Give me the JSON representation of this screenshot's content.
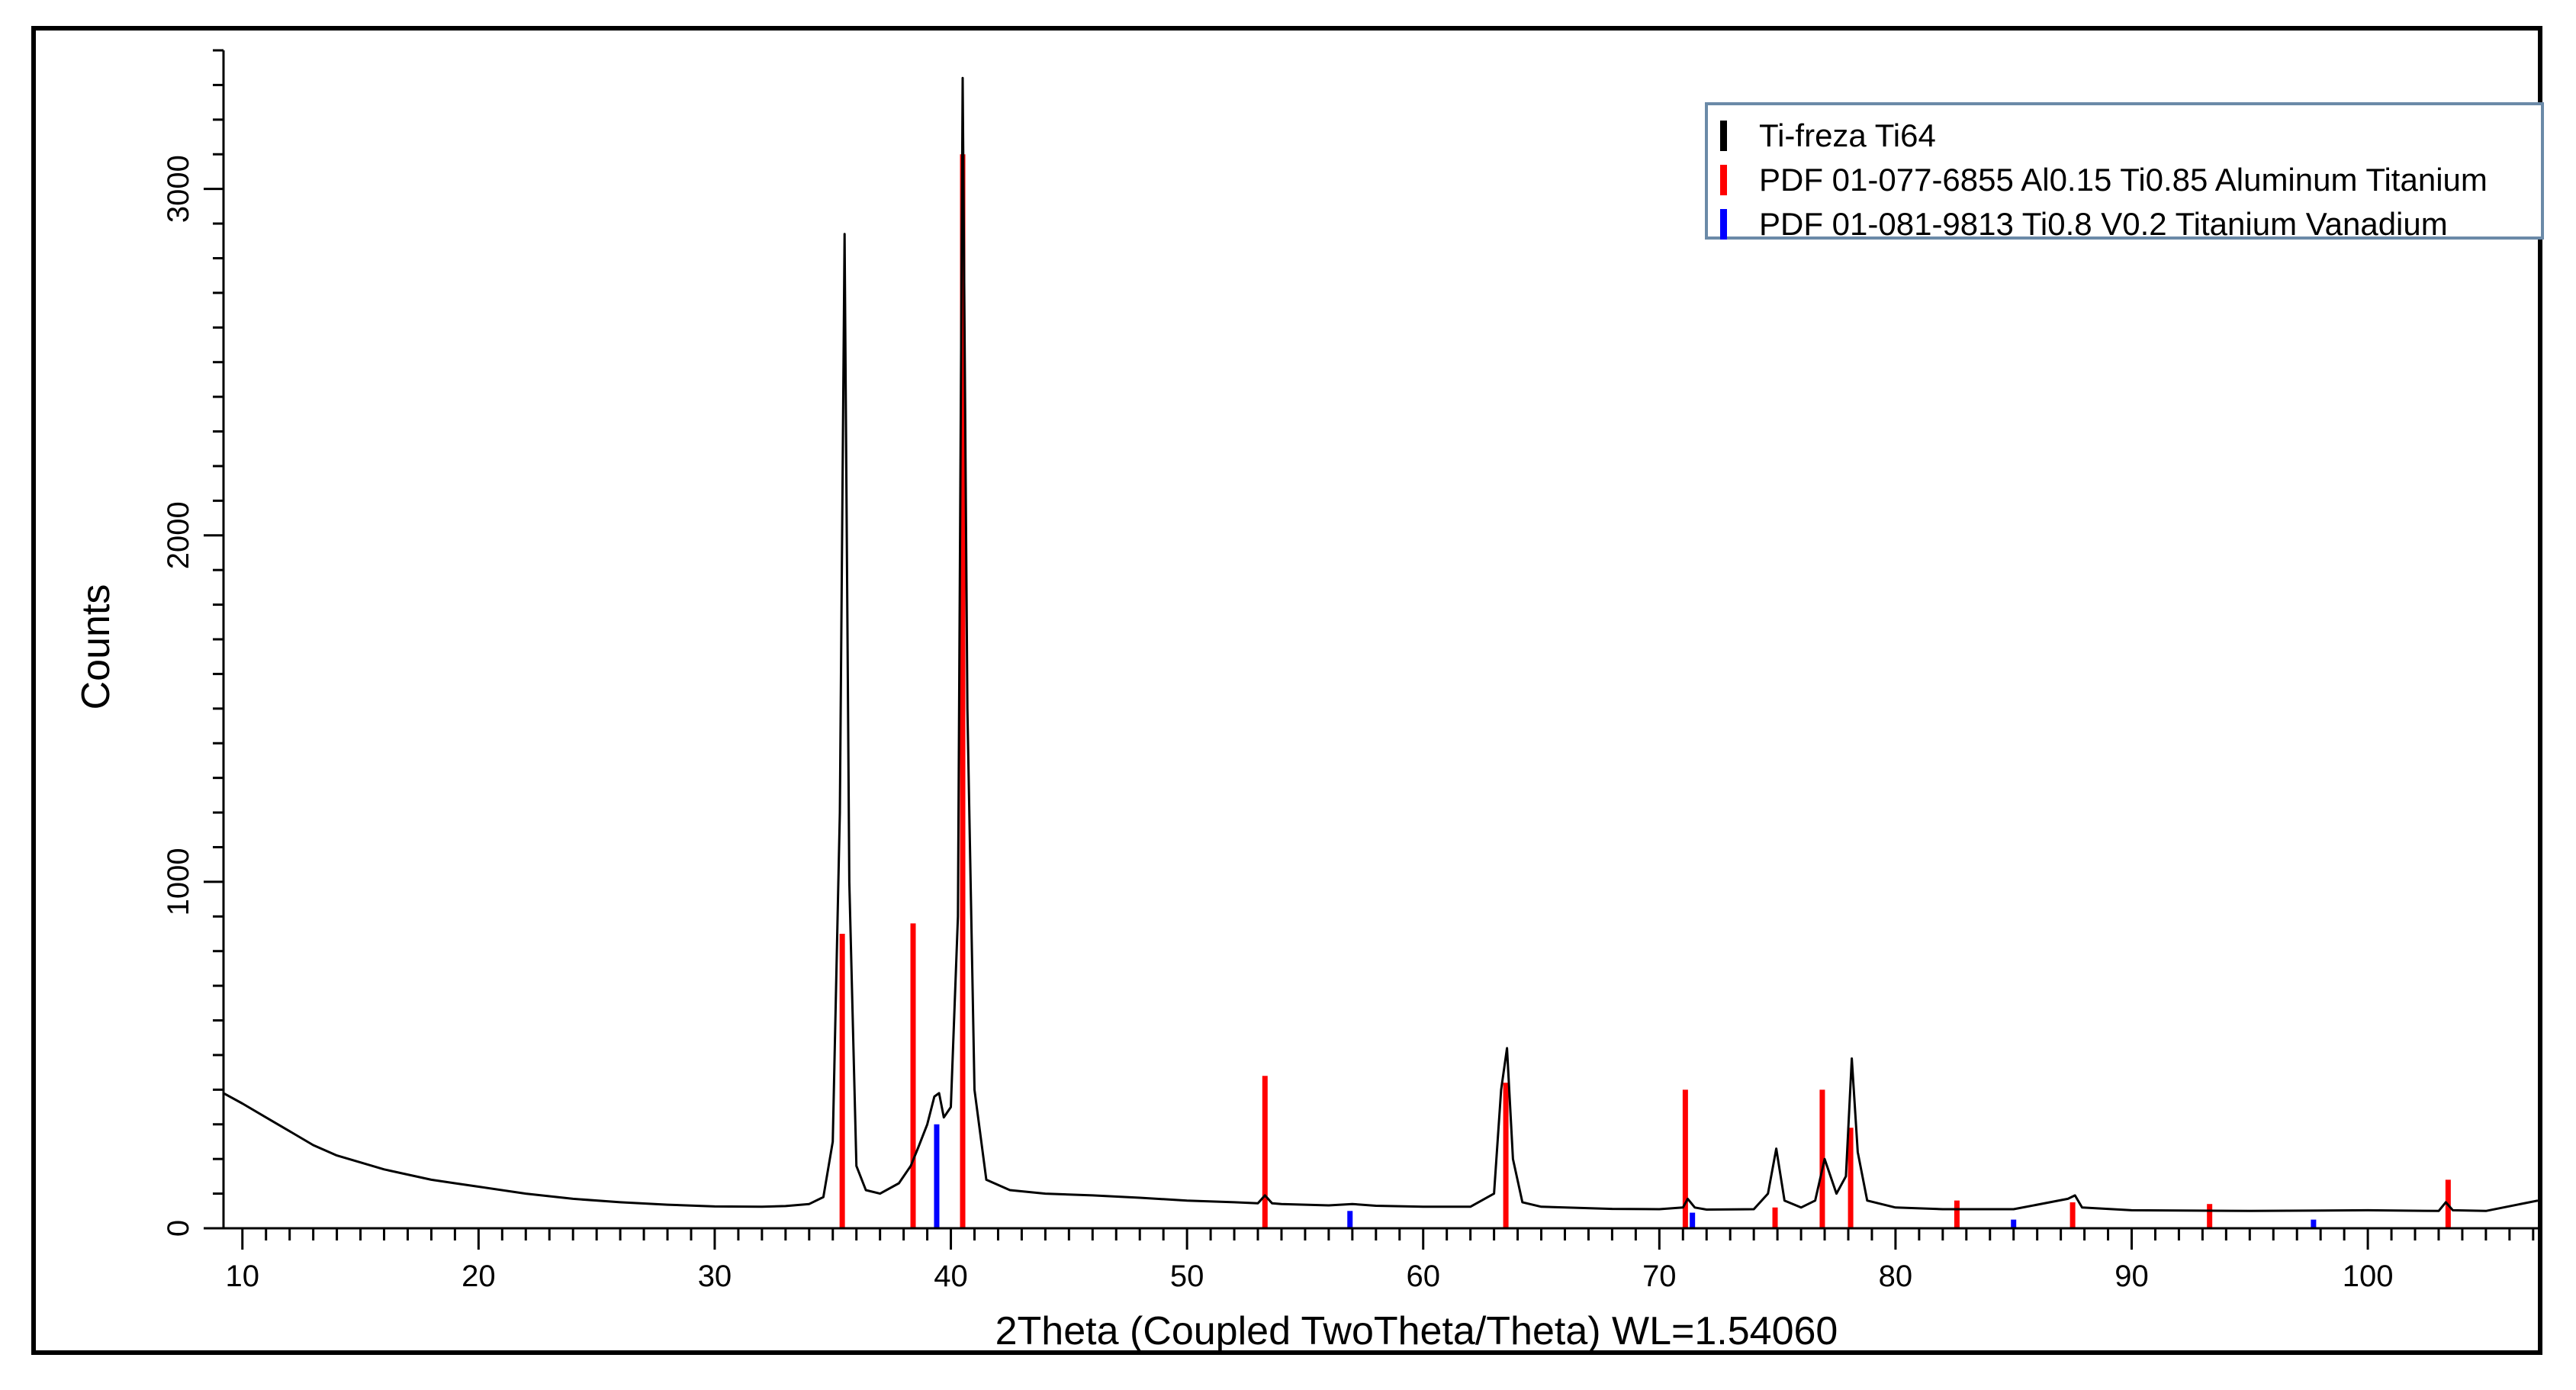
{
  "chart_data": {
    "type": "line",
    "xlabel": "2Theta (Coupled TwoTheta/Theta) WL=1.54060",
    "ylabel": "Counts",
    "xlim": [
      9.2,
      107.2
    ],
    "ylim": [
      0,
      3400
    ],
    "x_ticks": [
      10,
      20,
      30,
      40,
      50,
      60,
      70,
      80,
      90,
      100
    ],
    "y_ticks": [
      0,
      1000,
      2000,
      3000
    ],
    "grid": false,
    "legend_position": "top-right",
    "series": [
      {
        "name": "Ti-freza Ti64",
        "color": "#000000",
        "style": "line",
        "x": [
          9.2,
          10,
          11,
          12,
          13,
          14,
          15,
          16,
          17,
          18,
          19,
          20,
          22,
          24,
          26,
          28,
          30,
          32,
          33,
          34,
          34.6,
          35.0,
          35.3,
          35.5,
          35.7,
          36.0,
          36.4,
          37,
          37.8,
          38.3,
          38.6,
          39.0,
          39.3,
          39.5,
          39.7,
          40.0,
          40.3,
          40.5,
          40.7,
          41.0,
          41.5,
          42.5,
          44,
          46,
          48,
          50,
          52,
          53,
          53.3,
          53.6,
          54,
          56,
          57,
          58,
          60,
          62,
          63,
          63.3,
          63.55,
          63.8,
          64.2,
          65,
          68,
          70,
          71,
          71.2,
          71.5,
          72,
          74,
          74.6,
          74.95,
          75.3,
          76,
          76.6,
          77.0,
          77.5,
          77.9,
          78.15,
          78.4,
          78.8,
          80,
          82,
          85,
          87.3,
          87.6,
          87.9,
          90,
          95,
          100,
          103,
          103.3,
          103.6,
          105,
          107.2
        ],
        "y": [
          390,
          360,
          320,
          280,
          240,
          210,
          190,
          170,
          155,
          140,
          130,
          120,
          100,
          85,
          75,
          68,
          63,
          62,
          64,
          70,
          90,
          250,
          1200,
          2870,
          1000,
          180,
          110,
          100,
          130,
          180,
          230,
          300,
          380,
          390,
          320,
          350,
          900,
          3320,
          1500,
          400,
          140,
          110,
          100,
          95,
          88,
          80,
          75,
          72,
          95,
          72,
          70,
          66,
          70,
          65,
          62,
          62,
          100,
          400,
          520,
          200,
          75,
          62,
          56,
          55,
          60,
          85,
          60,
          54,
          55,
          100,
          230,
          80,
          60,
          80,
          200,
          100,
          150,
          490,
          220,
          80,
          60,
          55,
          55,
          85,
          95,
          60,
          52,
          50,
          52,
          50,
          75,
          52,
          50,
          80
        ]
      },
      {
        "name": "PDF 01-077-6855 Al0.15 Ti0.85 Aluminum Titanium",
        "color": "#ff0000",
        "style": "sticks",
        "x": [
          35.4,
          38.4,
          40.5,
          53.3,
          63.5,
          71.1,
          74.9,
          76.9,
          78.1,
          82.6,
          87.5,
          93.3,
          103.4
        ],
        "y": [
          850,
          880,
          3100,
          440,
          420,
          400,
          60,
          400,
          290,
          80,
          75,
          70,
          140
        ]
      },
      {
        "name": "PDF 01-081-9813 Ti0.8 V0.2 Titanium Vanadium",
        "color": "#0000ff",
        "style": "sticks",
        "x": [
          39.4,
          56.9,
          71.4,
          85.0,
          97.7
        ],
        "y": [
          300,
          50,
          45,
          25,
          25
        ]
      }
    ]
  }
}
